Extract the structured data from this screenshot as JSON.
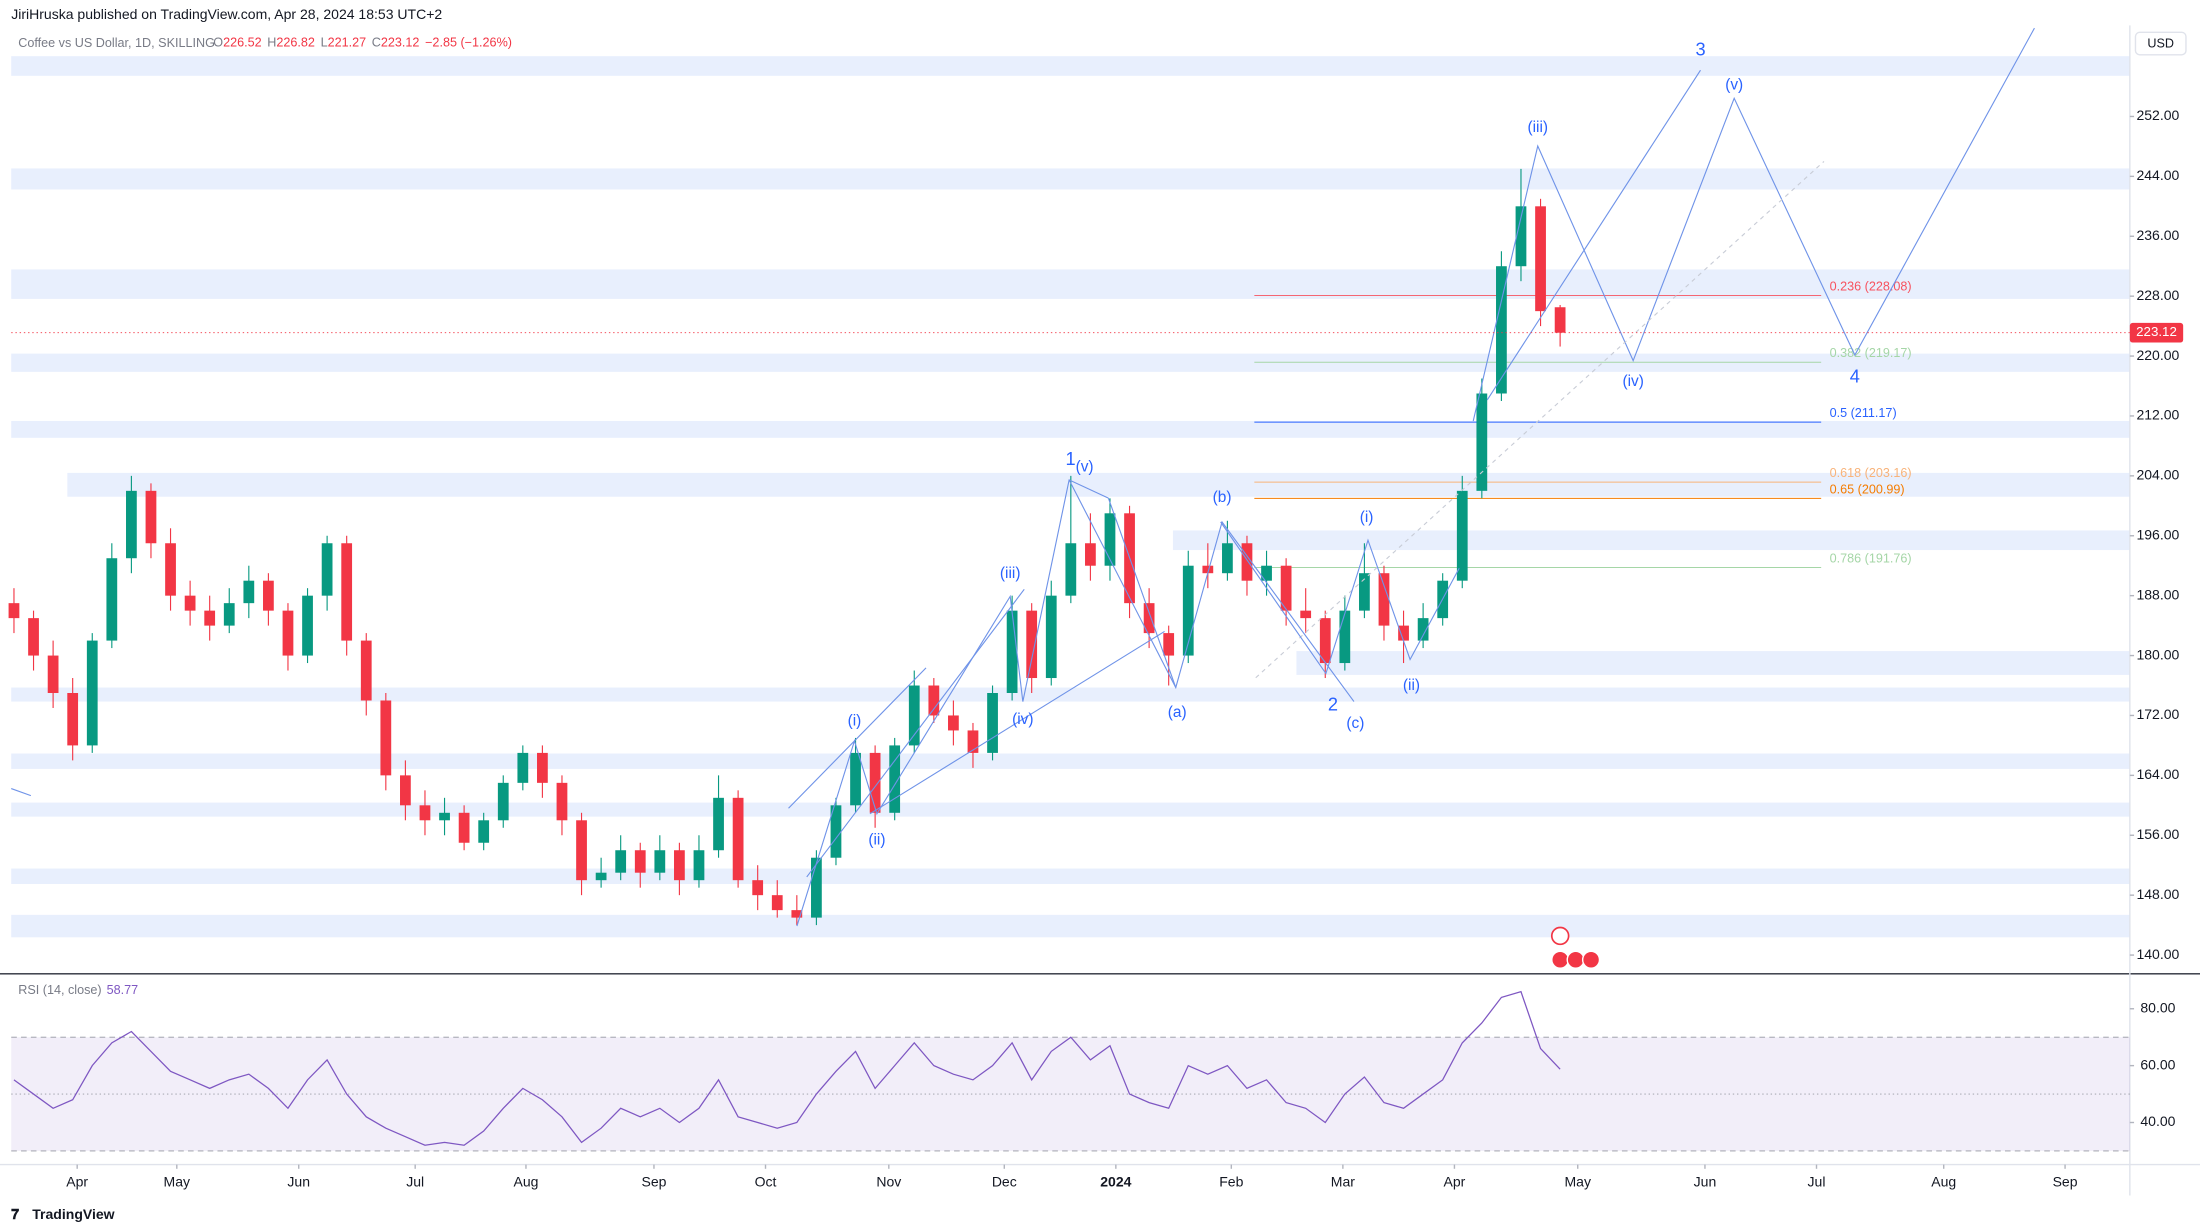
{
  "header": {
    "published": "JiriHruska published on TradingView.com, Apr 28, 2024 18:53 UTC+2",
    "brand": "TradingView",
    "currency": "USD"
  },
  "chart_data": {
    "type": "candlestick",
    "title": "Coffee vs US Dollar, 1D, SKILLING",
    "ohlc_letters": [
      "O",
      "H",
      "L",
      "C"
    ],
    "change": "−2.85 (−1.26%)",
    "up_color": "#089981",
    "down_color": "#f23645",
    "ohlc": [
      [
        187,
        189,
        183,
        185
      ],
      [
        185,
        186,
        178,
        180
      ],
      [
        180,
        182,
        173,
        175
      ],
      [
        175,
        177,
        166,
        168
      ],
      [
        168,
        183,
        167,
        182
      ],
      [
        182,
        195,
        181,
        193
      ],
      [
        193,
        204,
        191,
        202
      ],
      [
        202,
        203,
        193,
        195
      ],
      [
        195,
        197,
        186,
        188
      ],
      [
        188,
        190,
        184,
        186
      ],
      [
        186,
        188,
        182,
        184
      ],
      [
        184,
        189,
        183,
        187
      ],
      [
        187,
        192,
        185,
        190
      ],
      [
        190,
        191,
        184,
        186
      ],
      [
        186,
        187,
        178,
        180
      ],
      [
        180,
        189,
        179,
        188
      ],
      [
        188,
        196,
        186,
        195
      ],
      [
        195,
        196,
        180,
        182
      ],
      [
        182,
        183,
        172,
        174
      ],
      [
        174,
        175,
        162,
        164
      ],
      [
        164,
        166,
        158,
        160
      ],
      [
        160,
        162,
        156,
        158
      ],
      [
        158,
        161,
        156,
        159
      ],
      [
        159,
        160,
        154,
        155
      ],
      [
        155,
        159,
        154,
        158
      ],
      [
        158,
        164,
        157,
        163
      ],
      [
        163,
        168,
        162,
        167
      ],
      [
        167,
        168,
        161,
        163
      ],
      [
        163,
        164,
        156,
        158
      ],
      [
        158,
        159,
        148,
        150
      ],
      [
        150,
        153,
        149,
        151
      ],
      [
        151,
        156,
        150,
        154
      ],
      [
        154,
        155,
        149,
        151
      ],
      [
        151,
        156,
        150,
        154
      ],
      [
        154,
        155,
        148,
        150
      ],
      [
        150,
        156,
        149,
        154
      ],
      [
        154,
        164,
        153,
        161
      ],
      [
        161,
        162,
        149,
        150
      ],
      [
        150,
        152,
        146,
        148
      ],
      [
        148,
        150,
        145,
        146
      ],
      [
        146,
        148,
        144,
        145
      ],
      [
        145,
        154,
        144,
        153
      ],
      [
        153,
        161,
        152,
        160
      ],
      [
        160,
        169,
        159,
        167
      ],
      [
        167,
        168,
        157,
        159
      ],
      [
        159,
        169,
        158,
        168
      ],
      [
        168,
        178,
        167,
        176
      ],
      [
        176,
        177,
        171,
        172
      ],
      [
        172,
        174,
        168,
        170
      ],
      [
        170,
        171,
        165,
        167
      ],
      [
        167,
        176,
        166,
        175
      ],
      [
        175,
        188,
        174,
        186
      ],
      [
        186,
        187,
        175,
        177
      ],
      [
        177,
        190,
        176,
        188
      ],
      [
        188,
        204,
        187,
        195
      ],
      [
        195,
        199,
        190,
        192
      ],
      [
        192,
        201,
        190,
        199
      ],
      [
        199,
        200,
        185,
        187
      ],
      [
        187,
        189,
        181,
        183
      ],
      [
        183,
        184,
        176,
        180
      ],
      [
        180,
        194,
        179,
        192
      ],
      [
        192,
        195,
        189,
        191
      ],
      [
        191,
        198,
        190,
        195
      ],
      [
        195,
        196,
        188,
        190
      ],
      [
        190,
        194,
        188,
        192
      ],
      [
        192,
        193,
        184,
        186
      ],
      [
        186,
        189,
        183,
        185
      ],
      [
        185,
        186,
        177,
        179
      ],
      [
        179,
        188,
        178,
        186
      ],
      [
        186,
        195,
        185,
        191
      ],
      [
        191,
        192,
        182,
        184
      ],
      [
        184,
        186,
        179,
        182
      ],
      [
        182,
        187,
        181,
        185
      ],
      [
        185,
        191,
        184,
        190
      ],
      [
        190,
        204,
        189,
        202
      ],
      [
        202,
        217,
        201,
        215
      ],
      [
        215,
        234,
        214,
        232
      ],
      [
        232,
        245,
        230,
        240
      ],
      [
        240,
        241,
        224,
        226
      ],
      [
        226.52,
        226.82,
        221.27,
        223.12
      ]
    ],
    "xlim": [
      -0.14,
      108.11
    ],
    "xticks": [
      {
        "value": 3.23,
        "label": "Apr"
      },
      {
        "value": 8.32,
        "label": "May"
      },
      {
        "value": 14.55,
        "label": "Jun"
      },
      {
        "value": 20.5,
        "label": "Jul"
      },
      {
        "value": 26.16,
        "label": "Aug"
      },
      {
        "value": 32.7,
        "label": "Sep"
      },
      {
        "value": 38.4,
        "label": "Oct"
      },
      {
        "value": 44.7,
        "label": "Nov"
      },
      {
        "value": 50.6,
        "label": "Dec"
      },
      {
        "value": 56.3,
        "label": "2024"
      },
      {
        "value": 62.2,
        "label": "Feb"
      },
      {
        "value": 67.9,
        "label": "Mar"
      },
      {
        "value": 73.6,
        "label": "Apr"
      },
      {
        "value": 79.9,
        "label": "May"
      },
      {
        "value": 86.4,
        "label": "Jun"
      },
      {
        "value": 92.1,
        "label": "Jul"
      },
      {
        "value": 98.6,
        "label": "Aug"
      },
      {
        "value": 104.8,
        "label": "Sep"
      }
    ],
    "ylim": [
      137.5,
      262.3
    ],
    "yticks": [
      {
        "value": 140,
        "label": "140.00"
      },
      {
        "value": 148,
        "label": "148.00"
      },
      {
        "value": 156,
        "label": "156.00"
      },
      {
        "value": 164,
        "label": "164.00"
      },
      {
        "value": 172,
        "label": "172.00"
      },
      {
        "value": 180,
        "label": "180.00"
      },
      {
        "value": 188,
        "label": "188.00"
      },
      {
        "value": 196,
        "label": "196.00"
      },
      {
        "value": 204,
        "label": "204.00"
      },
      {
        "value": 212,
        "label": "212.00"
      },
      {
        "value": 220,
        "label": "220.00"
      },
      {
        "value": 228,
        "label": "228.00"
      },
      {
        "value": 236,
        "label": "236.00"
      },
      {
        "value": 244,
        "label": "244.00"
      },
      {
        "value": 252,
        "label": "252.00"
      }
    ],
    "fib_levels": [
      {
        "label": "0.236 (228.08)",
        "value": 228.08,
        "color": "#f7525f"
      },
      {
        "label": "0.382 (219.17)",
        "value": 219.17,
        "color": "#a5d6a7"
      },
      {
        "label": "0.5 (211.17)",
        "value": 211.17,
        "color": "#2962ff"
      },
      {
        "label": "0.618 (203.16)",
        "value": 203.16,
        "color": "#f8b37a"
      },
      {
        "label": "0.65 (200.99)",
        "value": 200.99,
        "color": "#f57c00"
      },
      {
        "label": "0.786 (191.76)",
        "value": 191.76,
        "color": "#a5d6a7"
      }
    ],
    "wave_labels": [
      "3",
      "(v)",
      "(iii)",
      "(iv)",
      "4",
      "1",
      "(v)",
      "(iii)",
      "(i)",
      "(iv)",
      "(ii)",
      "(b)",
      "(a)",
      "(i)",
      "2",
      "(c)",
      "(ii)"
    ],
    "rsi_title": "RSI (14, close)",
    "rsi_color": "#7e57c2",
    "rsi": [
      55,
      50,
      45,
      48,
      60,
      68,
      72,
      65,
      58,
      55,
      52,
      55,
      57,
      52,
      45,
      55,
      62,
      50,
      42,
      38,
      35,
      32,
      33,
      32,
      37,
      45,
      52,
      48,
      42,
      33,
      38,
      45,
      42,
      45,
      40,
      45,
      55,
      42,
      40,
      38,
      40,
      50,
      58,
      65,
      52,
      60,
      68,
      60,
      57,
      55,
      60,
      68,
      55,
      65,
      70,
      62,
      67,
      50,
      47,
      45,
      60,
      57,
      60,
      52,
      55,
      47,
      45,
      40,
      50,
      56,
      47,
      45,
      50,
      55,
      68,
      75,
      84,
      86,
      66,
      58.77
    ],
    "rsi_ylim": [
      25.2,
      92.3
    ],
    "rsi_yticks": [
      {
        "value": 40,
        "label": "40.00"
      },
      {
        "value": 60,
        "label": "60.00"
      },
      {
        "value": 80,
        "label": "80.00"
      }
    ],
    "rsi_bands": [
      70,
      50,
      30
    ]
  }
}
